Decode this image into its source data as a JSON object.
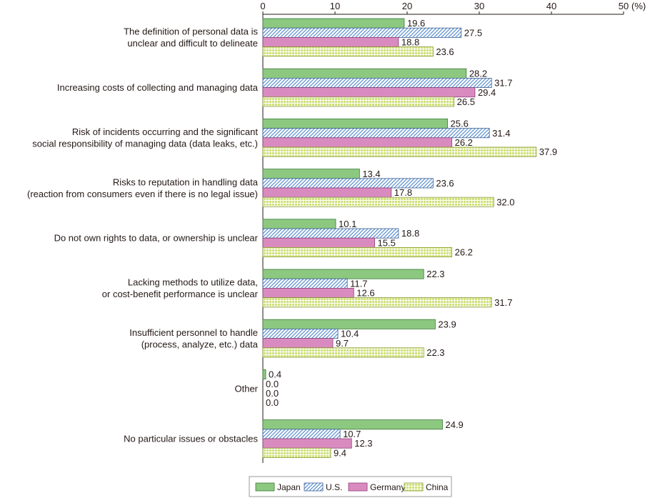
{
  "chart_data": {
    "type": "bar",
    "orientation": "horizontal",
    "categories": [
      [
        "The definition of personal data is",
        "unclear and difficult to delineate"
      ],
      [
        "Increasing costs of collecting and managing data"
      ],
      [
        "Risk of incidents occurring and the significant",
        "social responsibility of managing data (data leaks, etc.)"
      ],
      [
        "Risks to reputation in handling data",
        "(reaction from consumers even if there is no legal issue)"
      ],
      [
        "Do not own rights to data, or ownership is unclear"
      ],
      [
        "Lacking methods to utilize data,",
        "or cost-benefit performance is unclear"
      ],
      [
        "Insufficient personnel to handle",
        "(process, analyze, etc.) data"
      ],
      [
        "Other"
      ],
      [
        "No particular issues or obstacles"
      ]
    ],
    "series": [
      {
        "name": "Japan",
        "color": "#8dc880",
        "pattern": "solid",
        "values": [
          19.6,
          28.2,
          25.6,
          13.4,
          10.1,
          22.3,
          23.9,
          0.4,
          24.9
        ],
        "labels": [
          "19.6",
          "28.2",
          "25.6",
          "13.4",
          "10.1",
          "22.3",
          "23.9",
          "0.4",
          "24.9"
        ]
      },
      {
        "name": "U.S.",
        "color": "#5a8fd0",
        "pattern": "diagonal-hatch",
        "values": [
          27.5,
          31.7,
          31.4,
          23.6,
          18.8,
          11.7,
          10.4,
          0.0,
          10.7
        ],
        "labels": [
          "27.5",
          "31.7",
          "31.4",
          "23.6",
          "18.8",
          "11.7",
          "10.4",
          "0.0",
          "10.7"
        ]
      },
      {
        "name": "Germany",
        "color": "#d98bbf",
        "pattern": "solid",
        "values": [
          18.8,
          29.4,
          26.2,
          17.8,
          15.5,
          12.6,
          9.7,
          0.0,
          12.3
        ],
        "labels": [
          "18.8",
          "29.4",
          "26.2",
          "17.8",
          "15.5",
          "12.6",
          "9.7",
          "0.0",
          "12.3"
        ]
      },
      {
        "name": "China",
        "color": "#cfe07a",
        "pattern": "grid",
        "values": [
          23.6,
          26.5,
          37.9,
          32.0,
          26.2,
          31.7,
          22.3,
          0.0,
          9.4
        ],
        "labels": [
          "23.6",
          "26.5",
          "37.9",
          "32.0",
          "26.2",
          "31.7",
          "22.3",
          "0.0",
          "9.4"
        ]
      }
    ],
    "xlim": [
      0,
      50
    ],
    "ticks": [
      0,
      10,
      20,
      30,
      40,
      50
    ],
    "tick_labels": [
      "0",
      "10",
      "20",
      "30",
      "40",
      "50"
    ],
    "unit_label": "(%)",
    "grid": false,
    "legend_position": "bottom"
  }
}
